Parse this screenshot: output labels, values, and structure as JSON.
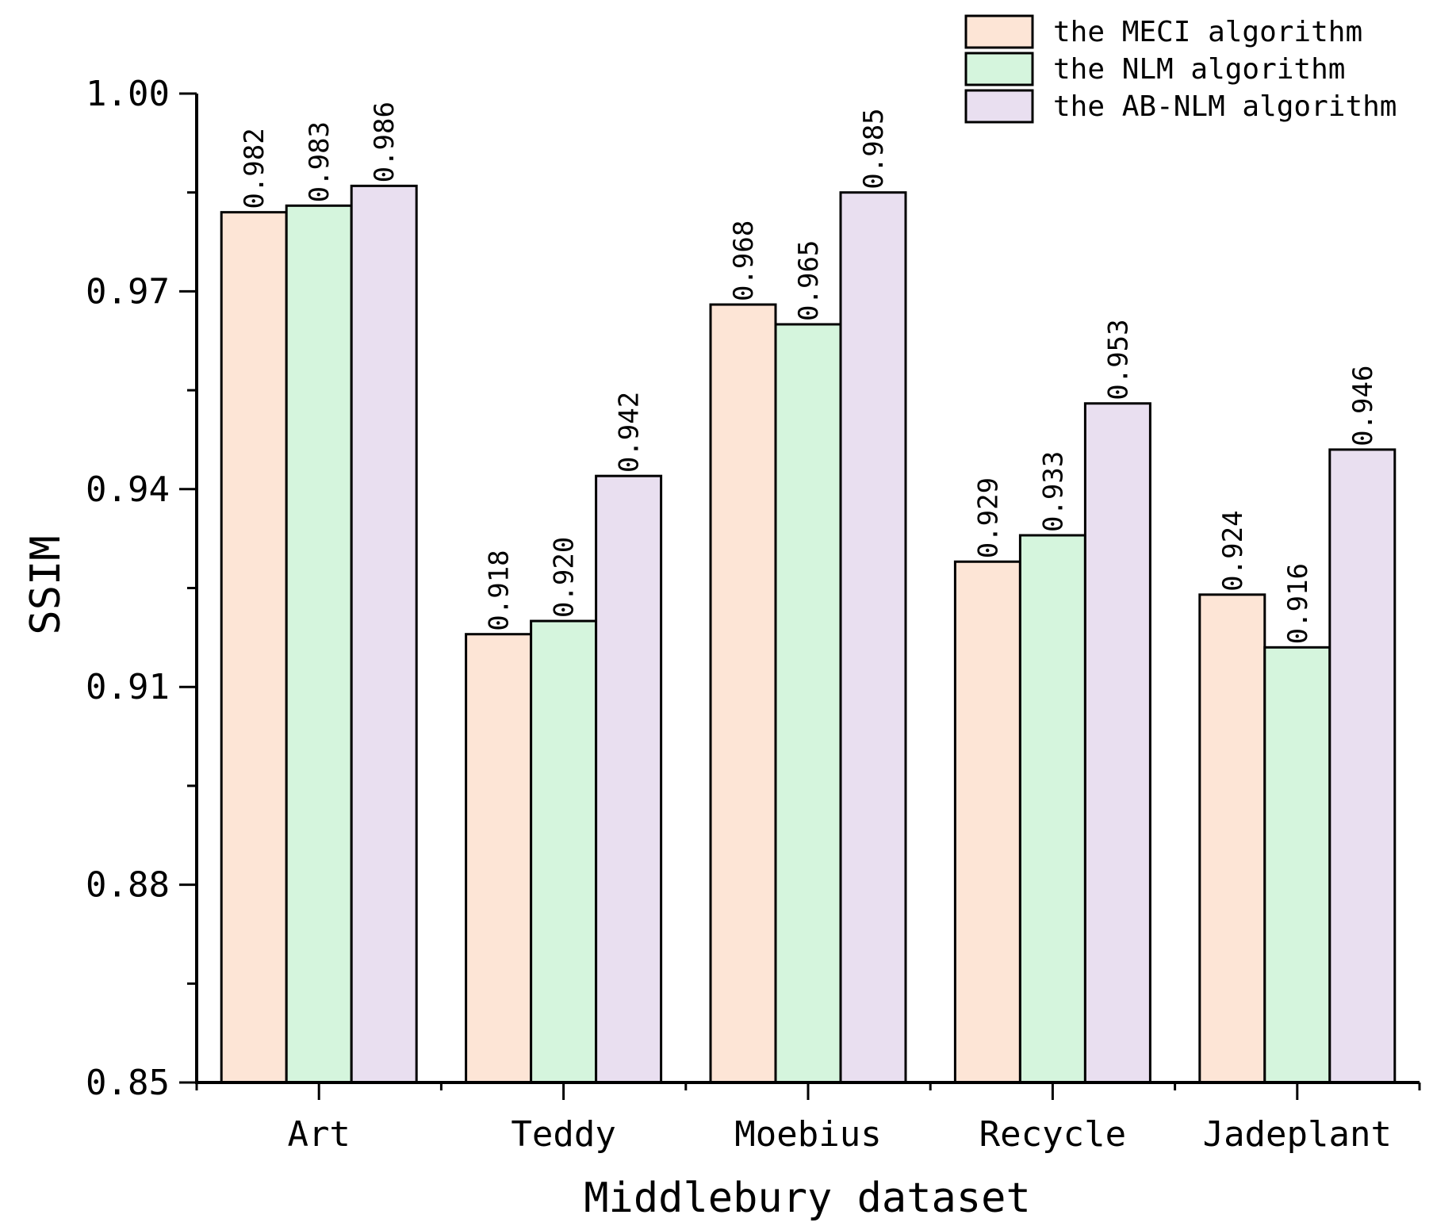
{
  "chart_data": {
    "type": "bar",
    "xlabel": "Middlebury dataset",
    "ylabel": "SSIM",
    "ylim": [
      0.85,
      1.0
    ],
    "yticks": [
      "0.85",
      "0.88",
      "0.91",
      "0.94",
      "0.97",
      "1.00"
    ],
    "categories": [
      "Art",
      "Teddy",
      "Moebius",
      "Recycle",
      "Jadeplant"
    ],
    "series": [
      {
        "name": "the MECI algorithm",
        "color": "#fde5d6",
        "values": [
          0.982,
          0.918,
          0.968,
          0.929,
          0.924
        ],
        "labels": [
          "0.982",
          "0.918",
          "0.968",
          "0.929",
          "0.924"
        ]
      },
      {
        "name": "the NLM algorithm",
        "color": "#d5f5dd",
        "values": [
          0.983,
          0.92,
          0.965,
          0.933,
          0.916
        ],
        "labels": [
          "0.983",
          "0.920",
          "0.965",
          "0.933",
          "0.916"
        ]
      },
      {
        "name": "the AB-NLM algorithm",
        "color": "#e9dff0",
        "values": [
          0.986,
          0.942,
          0.985,
          0.953,
          0.946
        ],
        "labels": [
          "0.986",
          "0.942",
          "0.985",
          "0.953",
          "0.946"
        ]
      }
    ],
    "legend_position": "top-right",
    "grid": false
  }
}
